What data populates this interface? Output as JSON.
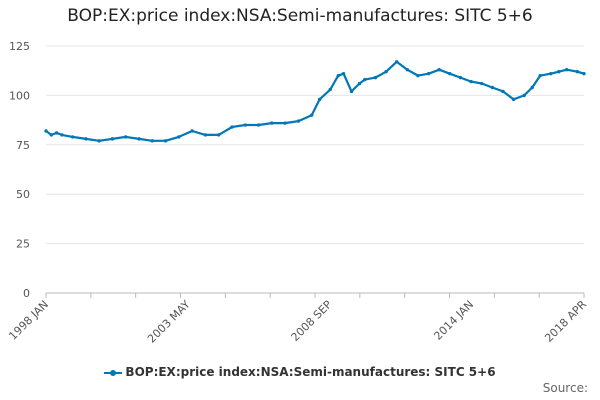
{
  "chart_data": {
    "type": "line",
    "title": "BOP:EX:price index:NSA:Semi-manufactures: SITC 5+6",
    "xlabel": "",
    "ylabel": "",
    "ylim": [
      0,
      125
    ],
    "yticks": [
      0,
      25,
      50,
      75,
      100,
      125
    ],
    "xlim": [
      1998.0,
      2018.25
    ],
    "x_ticks": [
      {
        "label": "1998 JAN",
        "x": 1998.0
      },
      {
        "label": "2003 MAY",
        "x": 2003.33
      },
      {
        "label": "2008 SEP",
        "x": 2008.67
      },
      {
        "label": "2014 JAN",
        "x": 2014.0
      },
      {
        "label": "2018 APR",
        "x": 2018.25
      }
    ],
    "grid": true,
    "legend_position": "bottom",
    "series": [
      {
        "name": "BOP:EX:price index:NSA:Semi-manufactures: SITC 5+6",
        "color": "#0077b6",
        "x": [
          1998.0,
          1998.2,
          1998.4,
          1998.6,
          1999.0,
          1999.5,
          2000.0,
          2000.5,
          2001.0,
          2001.5,
          2002.0,
          2002.5,
          2003.0,
          2003.5,
          2004.0,
          2004.5,
          2005.0,
          2005.5,
          2006.0,
          2006.5,
          2007.0,
          2007.5,
          2008.0,
          2008.3,
          2008.7,
          2009.0,
          2009.2,
          2009.5,
          2009.8,
          2010.0,
          2010.4,
          2010.8,
          2011.2,
          2011.6,
          2012.0,
          2012.4,
          2012.8,
          2013.2,
          2013.6,
          2014.0,
          2014.4,
          2014.8,
          2015.2,
          2015.6,
          2016.0,
          2016.3,
          2016.6,
          2017.0,
          2017.3,
          2017.6,
          2018.0,
          2018.25
        ],
        "values": [
          82,
          80,
          81,
          80,
          79,
          78,
          77,
          78,
          79,
          78,
          77,
          77,
          79,
          82,
          80,
          80,
          84,
          85,
          85,
          86,
          86,
          87,
          90,
          98,
          103,
          110,
          111,
          102,
          106,
          108,
          109,
          112,
          117,
          113,
          110,
          111,
          113,
          111,
          109,
          107,
          106,
          104,
          102,
          98,
          100,
          104,
          110,
          111,
          112,
          113,
          112,
          111
        ]
      }
    ]
  },
  "legend": {
    "label": "BOP:EX:price index:NSA:Semi-manufactures: SITC 5+6"
  },
  "source": {
    "label": "Source:"
  }
}
